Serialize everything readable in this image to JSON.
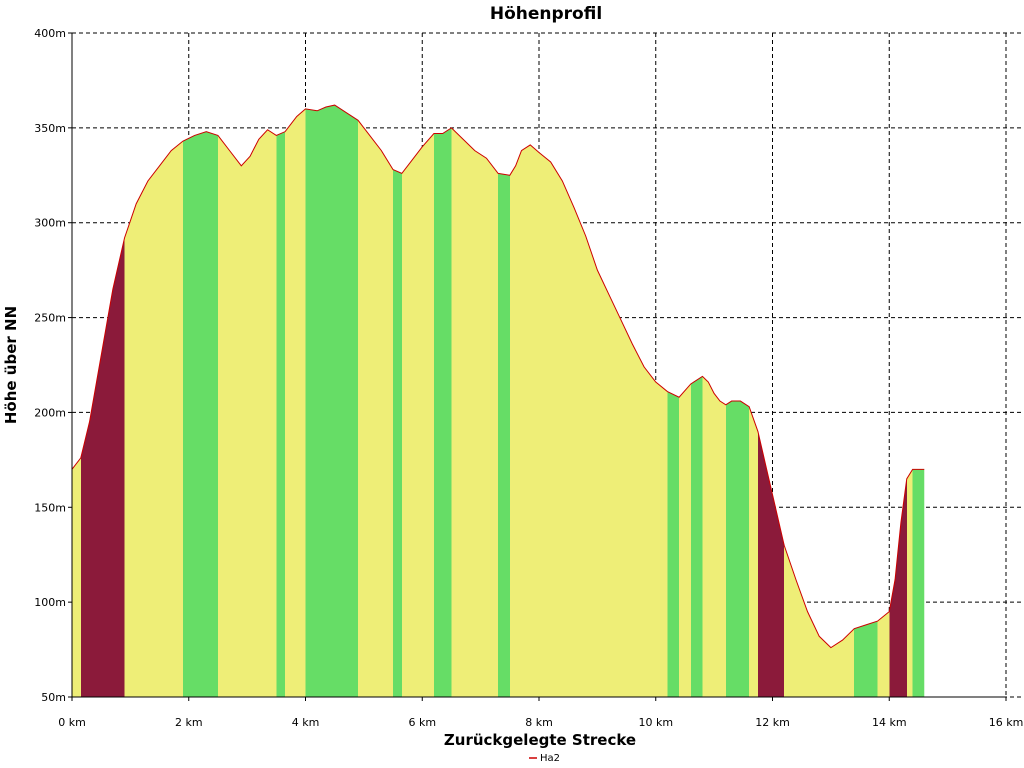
{
  "chart_data": {
    "type": "area",
    "title": "Höhenprofil",
    "xlabel": "Zurückgelegte Strecke",
    "ylabel": "Höhe über NN",
    "xlim": [
      0,
      16
    ],
    "ylim": [
      50,
      400
    ],
    "x_ticks": [
      0,
      2,
      4,
      6,
      8,
      10,
      12,
      14,
      16
    ],
    "x_tick_labels": [
      "0 km",
      "2 km",
      "4 km",
      "6 km",
      "8 km",
      "10 km",
      "12 km",
      "14 km",
      "16 km"
    ],
    "y_ticks": [
      50,
      100,
      150,
      200,
      250,
      300,
      350,
      400
    ],
    "y_tick_labels": [
      "50m",
      "100m",
      "150m",
      "200m",
      "250m",
      "300m",
      "350m",
      "400m"
    ],
    "grid": true,
    "legend_position": "bottom-center",
    "colors": {
      "line": "#cc0000",
      "flat": "#66dd66",
      "moderate": "#eeee77",
      "steep": "#8b1a3a"
    },
    "series": [
      {
        "name": "Ha2",
        "x": [
          0,
          0.15,
          0.3,
          0.5,
          0.7,
          0.9,
          1.1,
          1.3,
          1.5,
          1.7,
          1.9,
          2.1,
          2.3,
          2.5,
          2.7,
          2.9,
          3.05,
          3.2,
          3.35,
          3.5,
          3.65,
          3.85,
          4.0,
          4.2,
          4.35,
          4.5,
          4.7,
          4.9,
          5.1,
          5.3,
          5.5,
          5.65,
          5.8,
          6.0,
          6.2,
          6.35,
          6.5,
          6.7,
          6.9,
          7.1,
          7.3,
          7.5,
          7.6,
          7.7,
          7.85,
          8.0,
          8.2,
          8.4,
          8.6,
          8.8,
          9.0,
          9.2,
          9.4,
          9.6,
          9.8,
          10.0,
          10.2,
          10.4,
          10.6,
          10.8,
          10.9,
          11.0,
          11.1,
          11.2,
          11.3,
          11.45,
          11.6,
          11.75,
          11.9,
          12.05,
          12.2,
          12.4,
          12.6,
          12.8,
          13.0,
          13.2,
          13.4,
          13.6,
          13.8,
          14.0,
          14.1,
          14.2,
          14.3,
          14.4,
          14.5,
          14.6
        ],
        "values": [
          170,
          176,
          195,
          230,
          265,
          292,
          310,
          322,
          330,
          338,
          343,
          346,
          348,
          346,
          338,
          330,
          335,
          344,
          349,
          346,
          348,
          356,
          360,
          359,
          361,
          362,
          358,
          354,
          346,
          338,
          328,
          326,
          332,
          340,
          347,
          347,
          350,
          344,
          338,
          334,
          326,
          325,
          330,
          338,
          341,
          337,
          332,
          322,
          308,
          293,
          275,
          262,
          249,
          236,
          224,
          216,
          211,
          208,
          215,
          219,
          216,
          210,
          206,
          204,
          206,
          206,
          203,
          190,
          170,
          150,
          130,
          112,
          95,
          82,
          76,
          80,
          86,
          88,
          90,
          95,
          112,
          142,
          165,
          170,
          170,
          170
        ]
      }
    ]
  }
}
